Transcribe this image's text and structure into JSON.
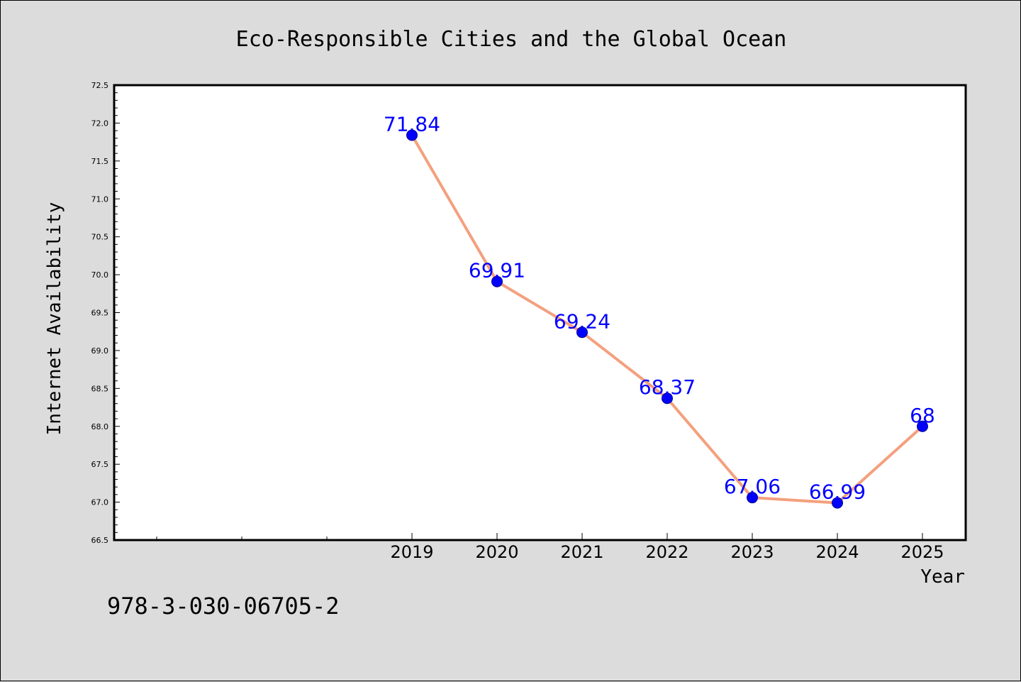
{
  "chart_data": {
    "type": "line",
    "title": "Eco-Responsible Cities and the Global Ocean",
    "xlabel": "Year",
    "ylabel": "Internet Availability",
    "x": [
      "2019",
      "2020",
      "2021",
      "2022",
      "2023",
      "2024",
      "2025"
    ],
    "series": [
      {
        "values": [
          71.84,
          69.91,
          69.24,
          68.37,
          67.06,
          66.99,
          68
        ]
      }
    ],
    "data_labels": [
      "71.84",
      "69.91",
      "69.24",
      "68.37",
      "67.06",
      "66.99",
      "68"
    ],
    "ylim": [
      66.5,
      72.5
    ],
    "yticks": [
      "66.5",
      "67.0",
      "67.5",
      "68.0",
      "68.5",
      "69.0",
      "69.5",
      "70.0",
      "70.5",
      "71.0",
      "71.5",
      "72.0",
      "72.5"
    ],
    "grid": false,
    "legend": "none",
    "colors": {
      "line": "#f4a07e",
      "marker": "#0000ff",
      "label": "#0000ff",
      "background": "#dcdcdc",
      "plot_area": "#ffffff"
    }
  },
  "footer": {
    "isbn": "978-3-030-06705-2"
  }
}
